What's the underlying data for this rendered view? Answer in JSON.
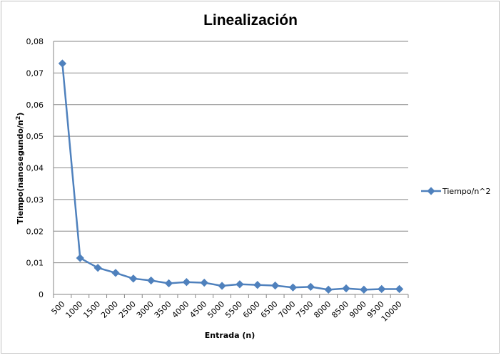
{
  "chart_data": {
    "type": "line",
    "title": "Linealización",
    "xlabel": "Entrada (n)",
    "ylabel_main": "Tiempo(nanosegundo/n",
    "ylabel_sup": "2",
    "ylabel_tail": ")",
    "categories": [
      "500",
      "1000",
      "1500",
      "2000",
      "2500",
      "3000",
      "3500",
      "4000",
      "4500",
      "5000",
      "5500",
      "6000",
      "6500",
      "7000",
      "7500",
      "8000",
      "8500",
      "9000",
      "9500",
      "10000"
    ],
    "series": [
      {
        "name": "Tiempo/n^2",
        "color": "#4f81bd",
        "values": [
          0.073,
          0.0115,
          0.0084,
          0.0068,
          0.005,
          0.0044,
          0.0035,
          0.0039,
          0.0037,
          0.0027,
          0.0032,
          0.003,
          0.0028,
          0.0022,
          0.0024,
          0.0015,
          0.0019,
          0.0015,
          0.0017,
          0.0017
        ]
      }
    ],
    "ylim": [
      0,
      0.08
    ],
    "yticks": [
      "0",
      "0,01",
      "0,02",
      "0,03",
      "0,04",
      "0,05",
      "0,06",
      "0,07",
      "0,08"
    ],
    "grid": true,
    "legend_position": "right"
  }
}
